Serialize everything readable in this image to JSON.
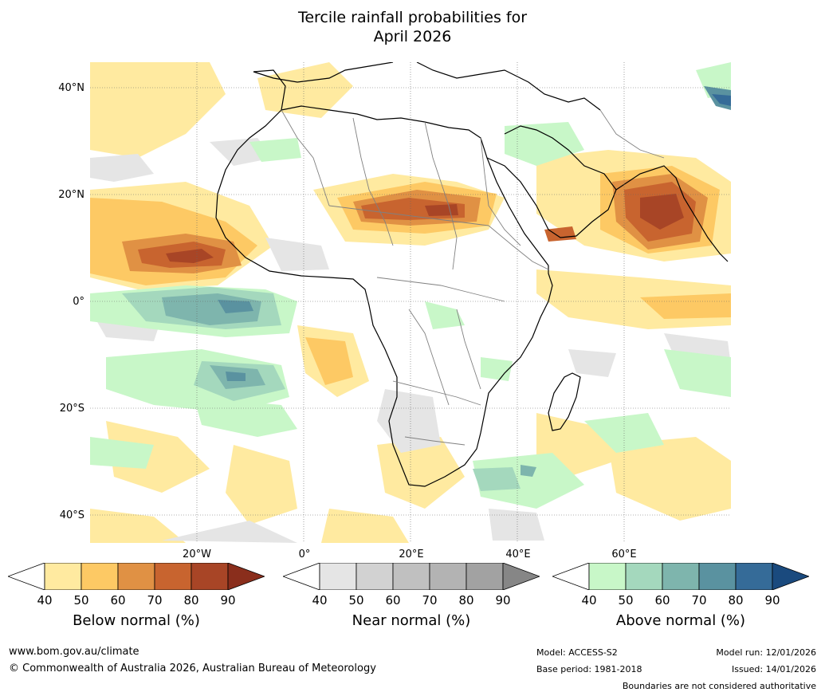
{
  "title_line1": "Tercile rainfall probabilities for",
  "title_line2": "April 2026",
  "latitude_labels": [
    "40°N",
    "20°N",
    "0°",
    "20°S",
    "40°S"
  ],
  "longitude_labels": [
    "20°W",
    "0°",
    "20°E",
    "40°E",
    "60°E"
  ],
  "legends": [
    {
      "title": "Below normal (%)",
      "ticks": [
        "40",
        "50",
        "60",
        "70",
        "80",
        "90"
      ],
      "colors": [
        "#ffffff",
        "#ffeaa0",
        "#fdc964",
        "#e09144",
        "#c8642f",
        "#a84526",
        "#8a2e1c"
      ]
    },
    {
      "title": "Near normal (%)",
      "ticks": [
        "40",
        "50",
        "60",
        "70",
        "80",
        "90"
      ],
      "colors": [
        "#ffffff",
        "#e5e5e5",
        "#d2d2d2",
        "#c0c0c0",
        "#b3b3b3",
        "#a2a2a2",
        "#868686"
      ]
    },
    {
      "title": "Above normal (%)",
      "ticks": [
        "40",
        "50",
        "60",
        "70",
        "80",
        "90"
      ],
      "colors": [
        "#ffffff",
        "#c8f7c8",
        "#a4d8bd",
        "#7eb5ad",
        "#5a92a0",
        "#356b98",
        "#1a4a7e"
      ]
    }
  ],
  "footer": {
    "website": "www.bom.gov.au/climate",
    "copyright": "© Commonwealth of Australia 2026, Australian Bureau of Meteorology",
    "model": "Model: ACCESS-S2",
    "base_period": "Base period: 1981-2018",
    "model_run": "Model run: 12/01/2026",
    "issued": "Issued: 14/01/2026",
    "disclaimer": "Boundaries are not considered authoritative"
  }
}
